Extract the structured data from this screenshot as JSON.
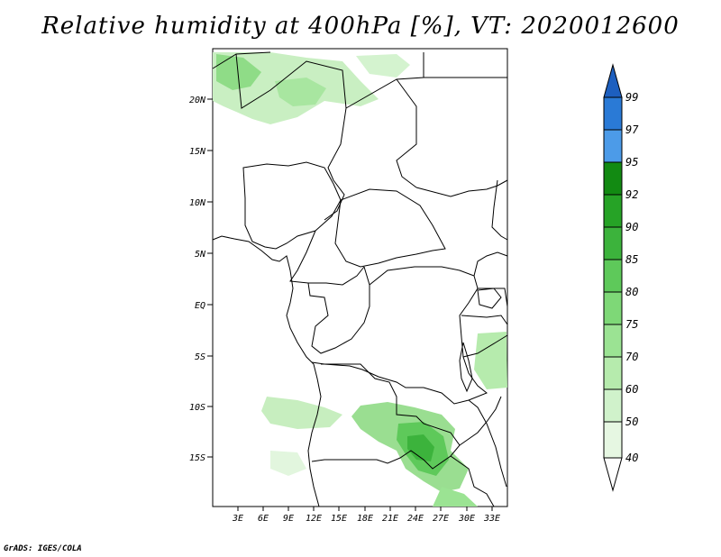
{
  "title": "Relative humidity at 400hPa [%], VT: 2020012600",
  "variable": "Relative humidity",
  "level": "400hPa",
  "units": "%",
  "valid_time": "2020012600",
  "credit": "GrADS: IGES/COLA",
  "lat_labels": [
    "20N",
    "15N",
    "10N",
    "5N",
    "EQ",
    "5S",
    "10S",
    "15S"
  ],
  "lon_labels": [
    "3E",
    "6E",
    "9E",
    "12E",
    "15E",
    "18E",
    "21E",
    "24E",
    "27E",
    "30E",
    "33E"
  ],
  "colorbar": {
    "levels": [
      "40",
      "50",
      "60",
      "70",
      "75",
      "80",
      "85",
      "90",
      "92",
      "95",
      "97",
      "99"
    ],
    "colors": [
      "#ffffff",
      "#e6f7e2",
      "#d0f2cb",
      "#b6ebad",
      "#9be393",
      "#7ed877",
      "#5ec95a",
      "#3cb33c",
      "#26a326",
      "#128a12",
      "#4c9be8",
      "#2a7ad6",
      "#1d5fbf"
    ]
  }
}
